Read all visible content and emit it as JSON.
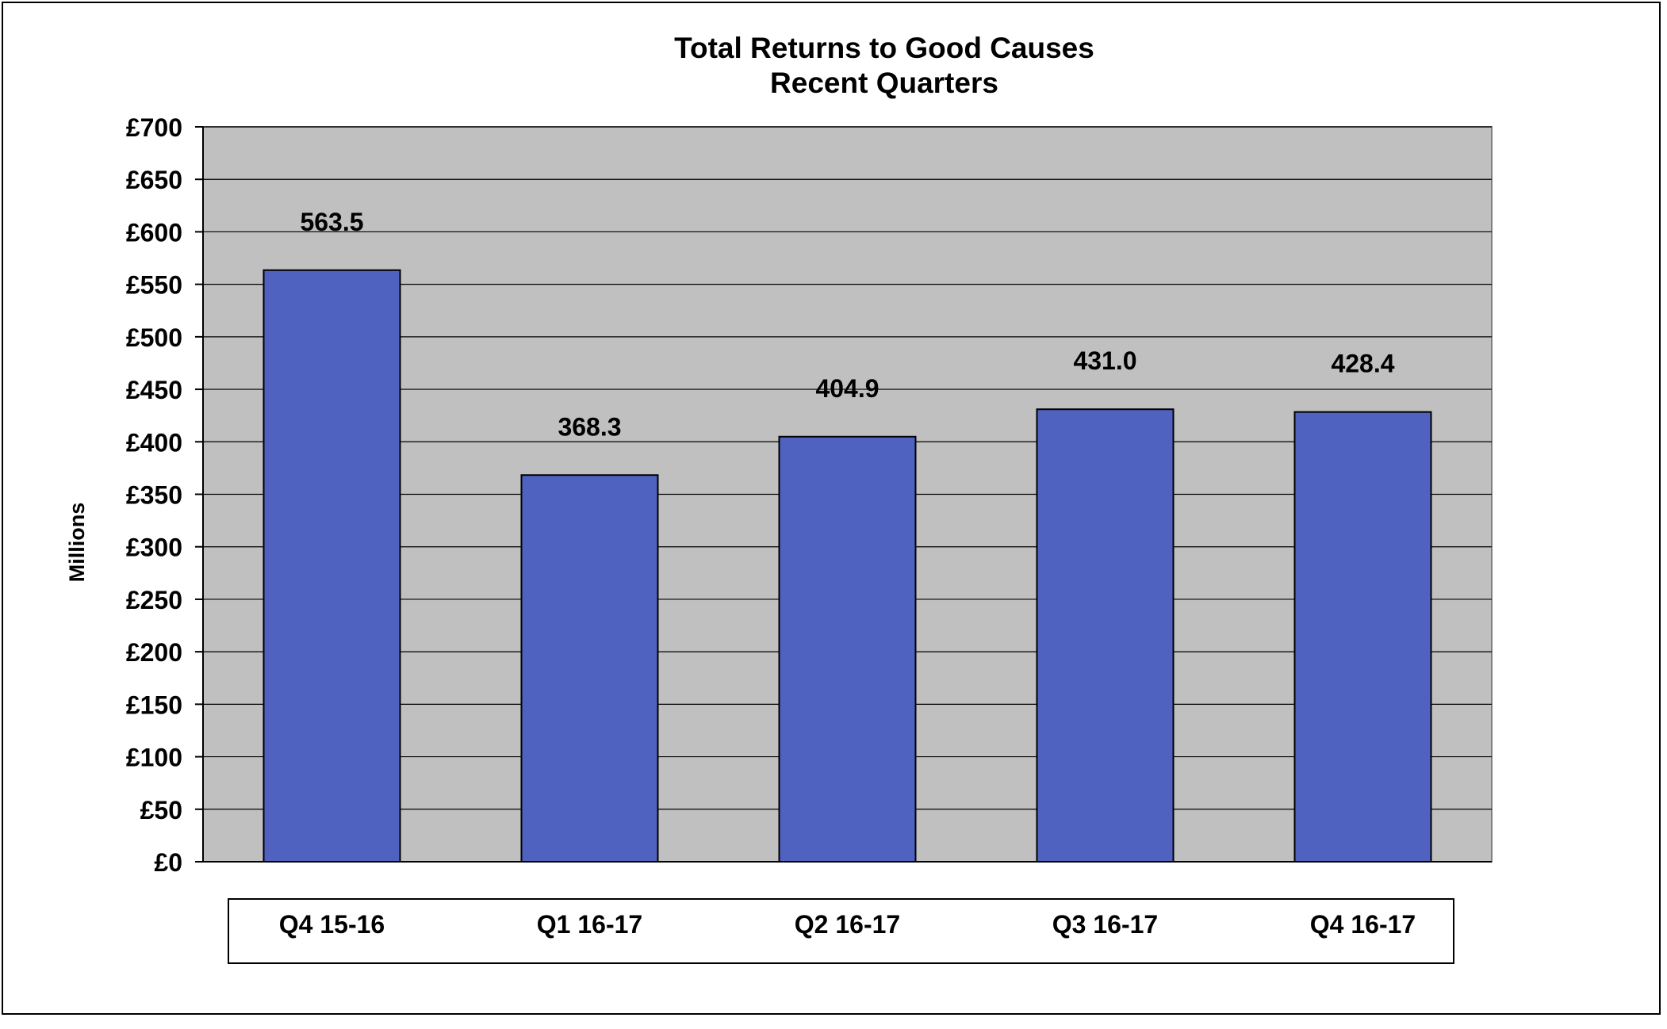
{
  "chart_data": {
    "type": "bar",
    "title": "Total Returns to Good Causes",
    "subtitle": "Recent Quarters",
    "xlabel": "",
    "ylabel": "Millions",
    "categories": [
      "Q4 15-16",
      "Q1 16-17",
      "Q2 16-17",
      "Q3 16-17",
      "Q4 16-17"
    ],
    "values": [
      563.5,
      368.3,
      404.9,
      431.0,
      428.4
    ],
    "data_labels": [
      "563.5",
      "368.3",
      "404.9",
      "431.0",
      "428.4"
    ],
    "ylim": [
      0,
      700
    ],
    "yticks": [
      0,
      50,
      100,
      150,
      200,
      250,
      300,
      350,
      400,
      450,
      500,
      550,
      600,
      650,
      700
    ],
    "ytick_labels": [
      "£0",
      "£50",
      "£100",
      "£150",
      "£200",
      "£250",
      "£300",
      "£350",
      "£400",
      "£450",
      "£500",
      "£550",
      "£600",
      "£650",
      "£700"
    ],
    "grid": true,
    "legend": "none",
    "colors": {
      "bar": "#4F62BF",
      "plot_background": "#C0C0C0",
      "grid": "#000000"
    }
  }
}
